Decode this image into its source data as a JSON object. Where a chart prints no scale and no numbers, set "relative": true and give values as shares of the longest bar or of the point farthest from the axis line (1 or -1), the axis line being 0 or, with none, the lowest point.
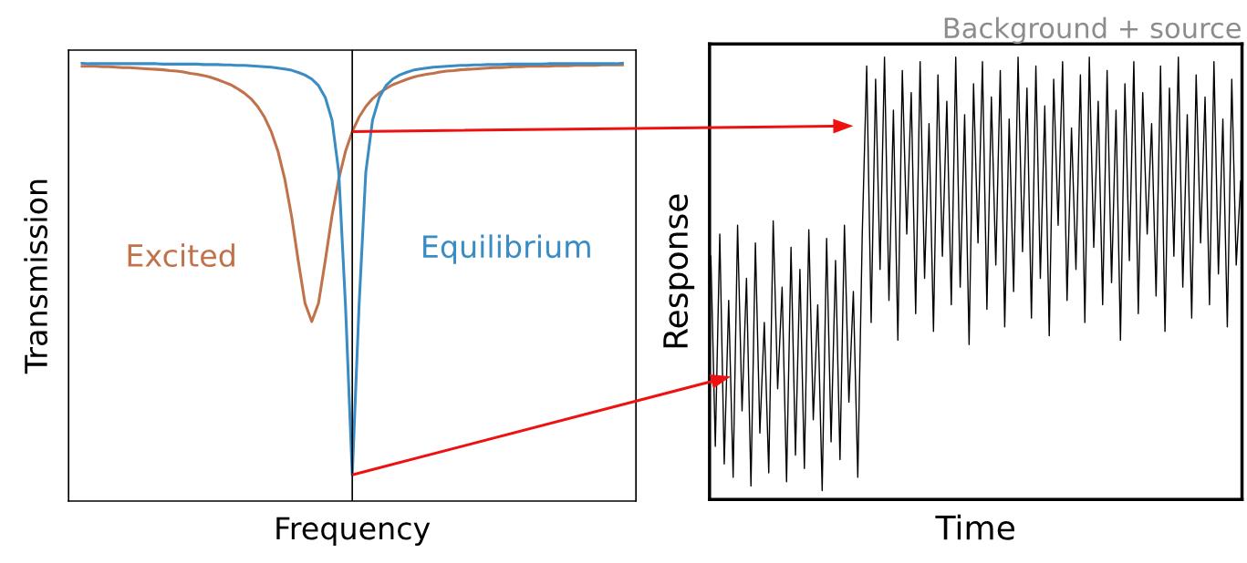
{
  "chart_data": [
    {
      "type": "line",
      "relative": true,
      "xlabel": "Frequency",
      "ylabel": "Transmission",
      "tick_labels": false,
      "marker": "none",
      "line_style": "solid",
      "categories": [
        null,
        null,
        null,
        null,
        null,
        null,
        null,
        null,
        null,
        null,
        null,
        null,
        null,
        null,
        null,
        null,
        null,
        null,
        null,
        null,
        null,
        null,
        null,
        null,
        null,
        null,
        null,
        null,
        null,
        null,
        null,
        null,
        null,
        null,
        null,
        null,
        null,
        null,
        null,
        null,
        null,
        null,
        null,
        null,
        null,
        null,
        null,
        null,
        null,
        null,
        null,
        null,
        null,
        null,
        null,
        null,
        null,
        null,
        null,
        null,
        null,
        null,
        null,
        null,
        null,
        null,
        null,
        null,
        null,
        null,
        null,
        null,
        null,
        null,
        null,
        null,
        null,
        null,
        null,
        null,
        null
      ],
      "series": [
        {
          "name": "Excited",
          "color": "#c0724a",
          "values": [
            0.993,
            0.993,
            0.993,
            0.992,
            0.992,
            0.991,
            0.99,
            0.99,
            0.989,
            0.988,
            0.987,
            0.986,
            0.985,
            0.983,
            0.982,
            0.98,
            0.977,
            0.975,
            0.972,
            0.968,
            0.963,
            0.957,
            0.951,
            0.942,
            0.932,
            0.919,
            0.901,
            0.877,
            0.844,
            0.799,
            0.736,
            0.652,
            0.549,
            0.452,
            0.41,
            0.452,
            0.549,
            0.652,
            0.736,
            0.799,
            0.844,
            0.877,
            0.901,
            0.919,
            0.932,
            0.942,
            0.951,
            0.957,
            0.963,
            0.968,
            0.972,
            0.975,
            0.977,
            0.98,
            0.982,
            0.983,
            0.985,
            0.986,
            0.987,
            0.988,
            0.989,
            0.99,
            0.99,
            0.991,
            0.992,
            0.992,
            0.993,
            0.993,
            0.993,
            0.993,
            0.994,
            0.994,
            0.994,
            0.995,
            0.995,
            0.995,
            0.995,
            0.996,
            0.996,
            0.996,
            0.996
          ]
        },
        {
          "name": "Equilibrium",
          "color": "#3a8cc4",
          "values": [
            1.0,
            0.999,
            0.999,
            0.999,
            0.999,
            0.999,
            0.999,
            0.999,
            0.999,
            0.999,
            0.999,
            0.999,
            0.998,
            0.998,
            0.998,
            0.998,
            0.998,
            0.998,
            0.997,
            0.997,
            0.997,
            0.996,
            0.996,
            0.995,
            0.995,
            0.994,
            0.993,
            0.992,
            0.991,
            0.989,
            0.987,
            0.984,
            0.979,
            0.973,
            0.964,
            0.949,
            0.922,
            0.87,
            0.751,
            0.445,
            0.06,
            0.445,
            0.751,
            0.87,
            0.922,
            0.949,
            0.964,
            0.973,
            0.979,
            0.984,
            0.987,
            0.989,
            0.991,
            0.992,
            0.993,
            0.994,
            0.995,
            0.995,
            0.996,
            0.996,
            0.997,
            0.997,
            0.997,
            0.998,
            0.998,
            0.998,
            0.998,
            0.998,
            0.998,
            0.999,
            0.999,
            0.999,
            0.999,
            0.999,
            0.999,
            0.999,
            0.999,
            0.999,
            0.999,
            0.999,
            1.0
          ]
        }
      ]
    },
    {
      "type": "line",
      "relative": true,
      "title": "Background + source",
      "xlabel": "Time",
      "ylabel": "Response",
      "tick_labels": false,
      "marker": "none",
      "line_style": "solid",
      "categories": [
        null,
        null,
        null,
        null,
        null,
        null,
        null,
        null,
        null,
        null,
        null,
        null,
        null,
        null,
        null,
        null,
        null,
        null,
        null,
        null,
        null,
        null,
        null,
        null,
        null,
        null,
        null,
        null,
        null,
        null,
        null,
        null,
        null,
        null,
        null,
        null,
        null,
        null,
        null,
        null,
        null,
        null,
        null,
        null,
        null,
        null,
        null,
        null,
        null,
        null,
        null,
        null,
        null,
        null,
        null,
        null,
        null,
        null,
        null,
        null,
        null,
        null,
        null,
        null,
        null,
        null,
        null,
        null,
        null,
        null,
        null,
        null,
        null,
        null,
        null,
        null,
        null,
        null,
        null,
        null,
        null,
        null,
        null,
        null,
        null,
        null,
        null,
        null,
        null,
        null,
        null,
        null,
        null,
        null,
        null,
        null,
        null,
        null,
        null,
        null,
        null,
        null,
        null,
        null,
        null,
        null,
        null,
        null,
        null,
        null,
        null,
        null,
        null,
        null,
        null,
        null,
        null,
        null,
        null,
        null
      ],
      "series": [
        {
          "color": "#000000",
          "values": [
            0.55,
            0.12,
            0.6,
            0.08,
            0.45,
            0.05,
            0.62,
            0.2,
            0.5,
            0.03,
            0.58,
            0.15,
            0.4,
            0.06,
            0.63,
            0.25,
            0.48,
            0.04,
            0.57,
            0.1,
            0.52,
            0.07,
            0.61,
            0.18,
            0.44,
            0.02,
            0.59,
            0.13,
            0.54,
            0.09,
            0.62,
            0.22,
            0.47,
            0.05,
            0.6,
            0.98,
            0.4,
            0.95,
            0.52,
            1.0,
            0.45,
            0.88,
            0.36,
            0.97,
            0.6,
            0.92,
            0.42,
            0.99,
            0.5,
            0.85,
            0.38,
            0.96,
            0.55,
            0.9,
            0.44,
            1.0,
            0.48,
            0.87,
            0.35,
            0.94,
            0.58,
            0.99,
            0.43,
            0.91,
            0.53,
            0.97,
            0.39,
            0.86,
            0.47,
            1.0,
            0.56,
            0.93,
            0.41,
            0.98,
            0.5,
            0.89,
            0.37,
            0.95,
            0.62,
            0.99,
            0.45,
            0.84,
            0.52,
            0.96,
            0.4,
            1.0,
            0.57,
            0.9,
            0.44,
            0.97,
            0.49,
            0.88,
            0.36,
            0.94,
            0.54,
            0.99,
            0.42,
            0.92,
            0.6,
            0.85,
            0.46,
            0.98,
            0.38,
            0.93,
            0.55,
            1.0,
            0.48,
            0.87,
            0.41,
            0.96,
            0.58,
            0.91,
            0.44,
            0.99,
            0.51,
            0.86,
            0.39,
            0.95,
            0.53,
            0.72
          ]
        }
      ]
    }
  ]
}
